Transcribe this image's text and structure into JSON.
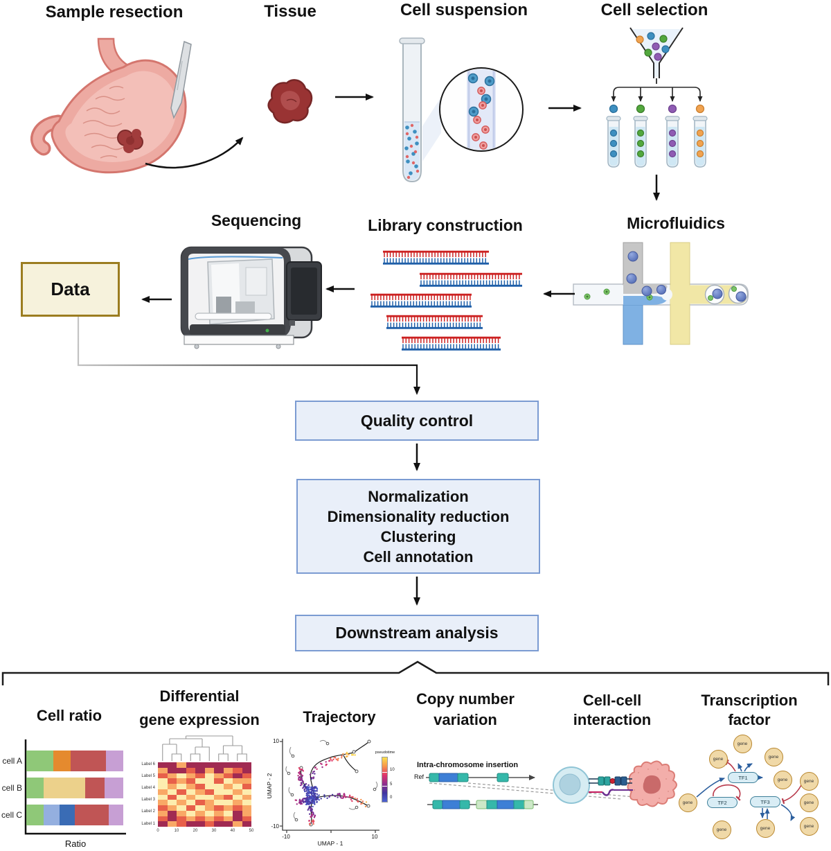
{
  "figure": {
    "top_row": {
      "sample_resection": "Sample resection",
      "tissue": "Tissue",
      "cell_suspension": "Cell suspension",
      "cell_selection": "Cell selection"
    },
    "mid_row": {
      "sequencing": "Sequencing",
      "library_construction": "Library construction",
      "microfluidics": "Microfluidics",
      "data_box": "Data"
    },
    "flow": {
      "quality_control": "Quality control",
      "processing": [
        "Normalization",
        "Dimensionality reduction",
        "Clustering",
        "Cell annotation"
      ],
      "downstream": "Downstream analysis"
    }
  },
  "panels": {
    "cell_ratio": {
      "title": "Cell ratio"
    },
    "dge": {
      "title_line1": "Differential",
      "title_line2": "gene expression"
    },
    "trajectory": {
      "title": "Trajectory"
    },
    "cnv": {
      "title_line1": "Copy number",
      "title_line2": "variation",
      "annotation": "Intra-chromosome insertion",
      "ref_label": "Ref"
    },
    "cell_cell": {
      "title_line1": "Cell-cell",
      "title_line2": "interaction"
    },
    "tf": {
      "title_line1": "Transcription",
      "title_line2": "factor",
      "gene_label": "gene",
      "tf_labels": [
        "TF1",
        "TF2",
        "TF3"
      ]
    }
  },
  "colors": {
    "flow_box_bg": "#e9eff9",
    "flow_box_border": "#7b9bd2",
    "data_box_bg": "#f6f2dc",
    "data_box_border": "#9b7d20",
    "gene_fill": "#f0d9a8",
    "gene_border": "#b8862d",
    "tf_fill": "#d9edf5",
    "tf_border": "#3d7f99",
    "activation_blue": "#2c5f9e",
    "inhibition_red": "#b8394b",
    "dna_red": "#cc2222",
    "dna_blue": "#1f5fa8",
    "cnv_teal": "#35b8aa",
    "cnv_blue": "#3d7fd6",
    "cnv_green": "#cde8c8"
  },
  "chart_data": [
    {
      "type": "bar",
      "title": "Cell ratio",
      "orientation": "horizontal_stacked",
      "xlabel": "Ratio",
      "categories": [
        "cell A",
        "cell B",
        "cell C"
      ],
      "series": [
        {
          "category": "cell A",
          "segments": [
            {
              "color": "#8fc878",
              "fraction": 0.28
            },
            {
              "color": "#e58a2e",
              "fraction": 0.18
            },
            {
              "color": "#c05555",
              "fraction": 0.36
            },
            {
              "color": "#c79fd4",
              "fraction": 0.18
            }
          ]
        },
        {
          "category": "cell B",
          "segments": [
            {
              "color": "#8fc878",
              "fraction": 0.18
            },
            {
              "color": "#ecd18b",
              "fraction": 0.43
            },
            {
              "color": "#c05555",
              "fraction": 0.2
            },
            {
              "color": "#c79fd4",
              "fraction": 0.19
            }
          ]
        },
        {
          "category": "cell C",
          "segments": [
            {
              "color": "#8fc878",
              "fraction": 0.18
            },
            {
              "color": "#94afdf",
              "fraction": 0.16
            },
            {
              "color": "#3a6cb5",
              "fraction": 0.16
            },
            {
              "color": "#c05555",
              "fraction": 0.35
            },
            {
              "color": "#c79fd4",
              "fraction": 0.15
            }
          ]
        }
      ]
    },
    {
      "type": "heatmap",
      "title": "Differential gene expression",
      "row_labels": [
        "Label 6",
        "Label 5",
        "Label 4",
        "Label 3",
        "Label 2",
        "Label 1"
      ],
      "x_ticks": [
        "0",
        "10",
        "20",
        "30",
        "40",
        "50"
      ],
      "palette": {
        "0": "#fdedaf",
        "1": "#f9a866",
        "2": "#e8604a",
        "3": "#a02a52"
      },
      "dendrogram": true,
      "matrix": [
        [
          3,
          3,
          1,
          3,
          3,
          3,
          3,
          3,
          3,
          3
        ],
        [
          1,
          3,
          3,
          2,
          3,
          1,
          3,
          1,
          2,
          3
        ],
        [
          2,
          1,
          0,
          1,
          2,
          0,
          1,
          2,
          3,
          2
        ],
        [
          0,
          2,
          1,
          2,
          0,
          0,
          2,
          0,
          1,
          1
        ],
        [
          0,
          1,
          0,
          1,
          2,
          0,
          0,
          1,
          0,
          2
        ],
        [
          1,
          0,
          2,
          0,
          1,
          2,
          0,
          0,
          1,
          0
        ],
        [
          0,
          2,
          0,
          1,
          0,
          0,
          1,
          2,
          0,
          1
        ],
        [
          1,
          0,
          1,
          0,
          2,
          1,
          0,
          0,
          1,
          0
        ],
        [
          2,
          1,
          0,
          2,
          0,
          1,
          2,
          1,
          2,
          1
        ],
        [
          1,
          3,
          1,
          0,
          1,
          0,
          1,
          0,
          3,
          1
        ],
        [
          2,
          3,
          2,
          1,
          2,
          1,
          2,
          1,
          3,
          2
        ],
        [
          3,
          1,
          2,
          3,
          3,
          2,
          3,
          3,
          1,
          3
        ]
      ]
    },
    {
      "type": "scatter",
      "title": "Trajectory",
      "xlabel": "UMAP - 1",
      "ylabel": "UMAP - 2",
      "xlim": [
        -10,
        10
      ],
      "ylim": [
        -10,
        10
      ],
      "x_tick_labels": [
        "-10",
        "10"
      ],
      "y_tick_labels": [
        "10",
        "-10"
      ],
      "colorbar": {
        "label": "pseudotime",
        "tick_labels": [
          "10",
          "5",
          "0"
        ],
        "gradient": [
          "#f9e14d",
          "#f8964b",
          "#e0336c",
          "#8f2e8e",
          "#41349e",
          "#4c63d2"
        ]
      }
    }
  ]
}
